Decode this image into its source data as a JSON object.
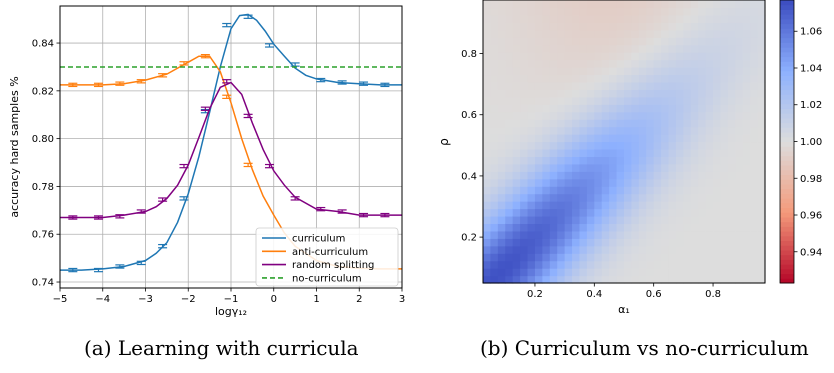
{
  "captions": {
    "a": "(a) Learning with curricula",
    "b": "(b) Curriculum vs no-curriculum"
  },
  "chart_data": [
    {
      "type": "line",
      "xlabel": "logγ₁₂",
      "ylabel": "accuracy hard samples %",
      "xlim": [
        -5,
        3
      ],
      "ylim": [
        0.7375,
        0.8555
      ],
      "xticks": [
        -5,
        -4,
        -3,
        -2,
        -1,
        0,
        1,
        2,
        3
      ],
      "yticks": [
        0.74,
        0.76,
        0.78,
        0.8,
        0.82,
        0.84
      ],
      "ytick_labels": [
        "0.74",
        "0.76",
        "0.78",
        "0.80",
        "0.82",
        "0.84"
      ],
      "grid": true,
      "legend_position": "lower-right",
      "series": [
        {
          "name": "curriculum",
          "color": "#1f77b4",
          "x": [
            -4.7,
            -4.1,
            -3.6,
            -3.1,
            -2.6,
            -2.1,
            -1.6,
            -1.1,
            -0.6,
            -0.1,
            0.5,
            1.1,
            1.6,
            2.1,
            2.6
          ],
          "y": [
            0.745,
            0.745,
            0.7465,
            0.748,
            0.755,
            0.775,
            0.8115,
            0.8475,
            0.851,
            0.839,
            0.831,
            0.8245,
            0.8235,
            0.823,
            0.8225
          ],
          "curve_x": [
            -5,
            -4.5,
            -4,
            -3.5,
            -3,
            -2.75,
            -2.5,
            -2.25,
            -2,
            -1.75,
            -1.5,
            -1.25,
            -1,
            -0.8,
            -0.6,
            -0.4,
            -0.2,
            0,
            0.25,
            0.5,
            0.75,
            1,
            1.5,
            2,
            2.5,
            3
          ],
          "curve_y": [
            0.745,
            0.745,
            0.7455,
            0.7465,
            0.749,
            0.752,
            0.7565,
            0.765,
            0.777,
            0.7925,
            0.811,
            0.83,
            0.846,
            0.8515,
            0.852,
            0.8495,
            0.845,
            0.8395,
            0.8345,
            0.8295,
            0.8265,
            0.825,
            0.8235,
            0.823,
            0.8225,
            0.8225
          ]
        },
        {
          "name": "anti-curriculum",
          "color": "#ff7f0e",
          "x": [
            -4.7,
            -4.1,
            -3.6,
            -3.1,
            -2.6,
            -2.1,
            -1.6,
            -1.1,
            -0.6
          ],
          "y": [
            0.8225,
            0.8225,
            0.823,
            0.824,
            0.8265,
            0.8315,
            0.8345,
            0.8175,
            0.789
          ],
          "curve_x": [
            -5,
            -4.5,
            -4,
            -3.5,
            -3,
            -2.5,
            -2,
            -1.75,
            -1.5,
            -1.25,
            -1,
            -0.75,
            -0.5,
            -0.25,
            0,
            0.25,
            0.5,
            1,
            1.5,
            2,
            2.5,
            3
          ],
          "curve_y": [
            0.8225,
            0.8225,
            0.8225,
            0.823,
            0.8245,
            0.827,
            0.832,
            0.8345,
            0.8345,
            0.828,
            0.815,
            0.8,
            0.787,
            0.776,
            0.768,
            0.7605,
            0.755,
            0.749,
            0.7465,
            0.7458,
            0.7455,
            0.7455
          ]
        },
        {
          "name": "random splitting",
          "color": "#800080",
          "x": [
            -4.7,
            -4.1,
            -3.6,
            -3.1,
            -2.6,
            -2.1,
            -1.6,
            -1.1,
            -0.6,
            -0.1,
            0.5,
            1.1,
            1.6,
            2.1,
            2.6
          ],
          "y": [
            0.767,
            0.767,
            0.7675,
            0.7695,
            0.7745,
            0.7885,
            0.8125,
            0.824,
            0.8095,
            0.7885,
            0.775,
            0.7705,
            0.7695,
            0.768,
            0.768
          ],
          "curve_x": [
            -5,
            -4.5,
            -4,
            -3.5,
            -3,
            -2.75,
            -2.5,
            -2.25,
            -2,
            -1.75,
            -1.5,
            -1.25,
            -1,
            -0.75,
            -0.5,
            -0.25,
            0,
            0.25,
            0.5,
            1,
            1.5,
            2,
            2.5,
            3
          ],
          "curve_y": [
            0.767,
            0.767,
            0.767,
            0.768,
            0.7695,
            0.7715,
            0.775,
            0.7805,
            0.789,
            0.8005,
            0.8125,
            0.8215,
            0.8235,
            0.8185,
            0.8065,
            0.7955,
            0.7865,
            0.7805,
            0.7755,
            0.7705,
            0.7695,
            0.768,
            0.768,
            0.768
          ]
        },
        {
          "name": "no-curriculum",
          "color": "#2ca02c",
          "style": "dashed",
          "y_const": 0.83
        }
      ]
    },
    {
      "type": "heatmap",
      "xlabel": "α₁",
      "ylabel": "ρ",
      "xlim": [
        0.025,
        0.975
      ],
      "ylim": [
        0.05,
        0.975
      ],
      "xticks": [
        0.2,
        0.4,
        0.6,
        0.8
      ],
      "yticks": [
        0.2,
        0.4,
        0.6,
        0.8
      ],
      "colormap": "coolwarm_r",
      "grid": false,
      "colorbar": {
        "vmin": 0.923,
        "vmax": 1.077,
        "ticks": [
          0.94,
          0.96,
          0.98,
          1.0,
          1.02,
          1.04,
          1.06
        ],
        "tick_labels": [
          "0.94",
          "0.96",
          "0.98",
          "1.00",
          "1.02",
          "1.04",
          "1.06"
        ]
      },
      "description_of_field": {
        "ridge_direction": "along α₁ ≈ ρ",
        "max_value_near": [
          0.1,
          0.08
        ],
        "max_value": 1.07,
        "upper_region_value": 0.992
      }
    }
  ]
}
